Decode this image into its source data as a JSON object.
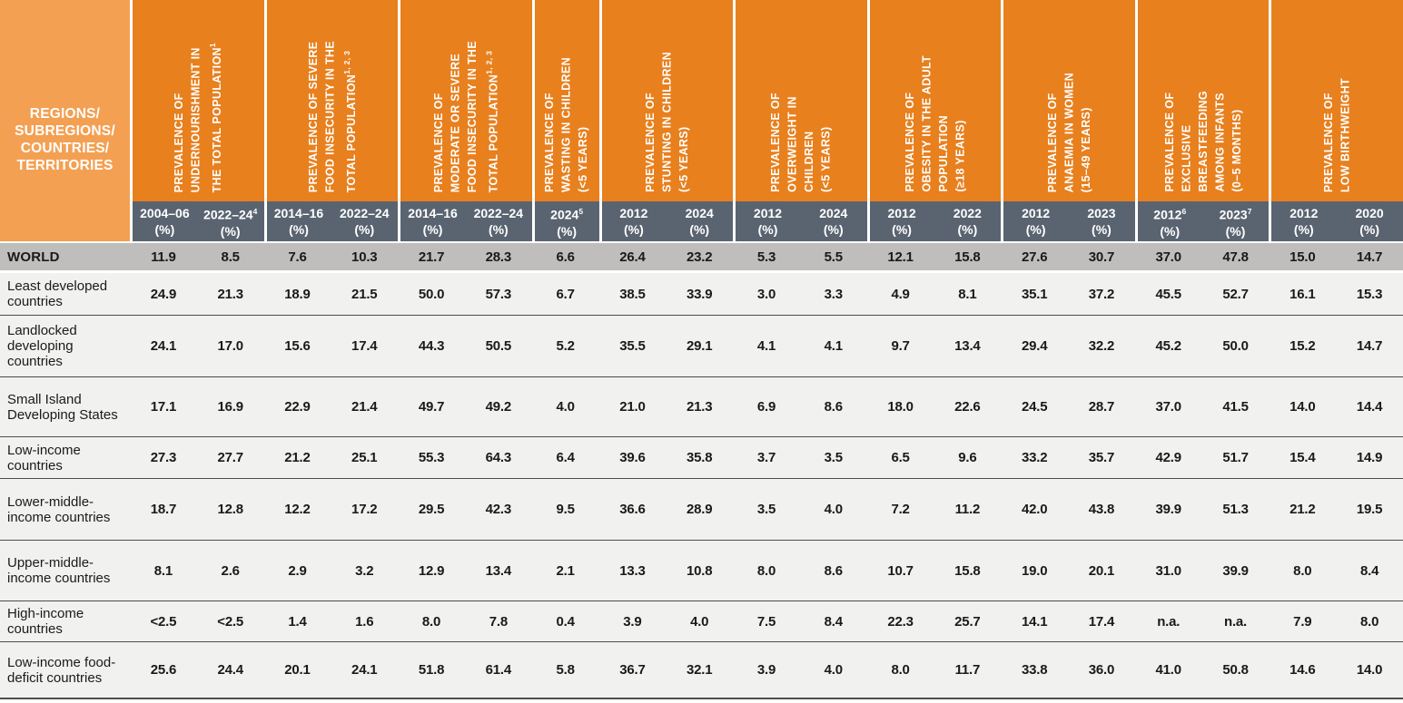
{
  "table": {
    "corner_lines": [
      "REGIONS/",
      "SUBREGIONS/",
      "COUNTRIES/",
      "TERRITORIES"
    ],
    "percent_label": "(%)",
    "colors": {
      "corner_orange": "#F3A053",
      "group_header_orange": "#E8801E",
      "year_bar_slate": "#5A6471",
      "world_row_gray": "#BFBEBD",
      "data_row_gray": "#F1F1EF",
      "row_rule_dark": "#4D4D4D",
      "header_text": "#FFFFFF",
      "body_text": "#1A1A1A"
    },
    "groups": [
      {
        "lines": [
          "PREVALENCE OF",
          "UNDERNOURISHMENT IN",
          "THE TOTAL POPULATION"
        ],
        "sup": "1",
        "cols": [
          {
            "year": "2004–06"
          },
          {
            "year": "2022–24",
            "sup": "4"
          }
        ]
      },
      {
        "lines": [
          "PREVALENCE OF SEVERE",
          "FOOD INSECURITY IN THE",
          "TOTAL POPULATION"
        ],
        "sup": "1, 2, 3",
        "cols": [
          {
            "year": "2014–16"
          },
          {
            "year": "2022–24"
          }
        ]
      },
      {
        "lines": [
          "PREVALENCE OF",
          "MODERATE OR SEVERE",
          "FOOD INSECURITY IN THE",
          "TOTAL POPULATION"
        ],
        "sup": "1, 2, 3",
        "cols": [
          {
            "year": "2014–16"
          },
          {
            "year": "2022–24"
          }
        ]
      },
      {
        "lines": [
          "PREVALENCE OF",
          "WASTING IN CHILDREN",
          "(<5 YEARS)"
        ],
        "cols": [
          {
            "year": "2024",
            "sup": "5"
          }
        ]
      },
      {
        "lines": [
          "PREVALENCE OF",
          "STUNTING IN CHILDREN",
          "(<5 YEARS)"
        ],
        "cols": [
          {
            "year": "2012"
          },
          {
            "year": "2024"
          }
        ]
      },
      {
        "lines": [
          "PREVALENCE OF",
          "OVERWEIGHT IN",
          "CHILDREN",
          "(<5 YEARS)"
        ],
        "cols": [
          {
            "year": "2012"
          },
          {
            "year": "2024"
          }
        ]
      },
      {
        "lines": [
          "PREVALENCE OF",
          "OBESITY IN THE ADULT",
          "POPULATION",
          "(≥18 YEARS)"
        ],
        "cols": [
          {
            "year": "2012"
          },
          {
            "year": "2022"
          }
        ]
      },
      {
        "lines": [
          "PREVALENCE OF",
          "ANAEMIA IN WOMEN",
          "(15–49 YEARS)"
        ],
        "cols": [
          {
            "year": "2012"
          },
          {
            "year": "2023"
          }
        ]
      },
      {
        "lines": [
          "PREVALENCE OF",
          "EXCLUSIVE",
          "BREASTFEEDING",
          "AMONG INFANTS",
          "(0–5 MONTHS)"
        ],
        "cols": [
          {
            "year": "2012",
            "sup": "6"
          },
          {
            "year": "2023",
            "sup": "7"
          }
        ]
      },
      {
        "lines": [
          "PREVALENCE OF",
          "LOW BIRTHWEIGHT"
        ],
        "cols": [
          {
            "year": "2012"
          },
          {
            "year": "2020"
          }
        ]
      }
    ],
    "rows": [
      {
        "label": "WORLD",
        "emphasis": true,
        "values": [
          "11.9",
          "8.5",
          "7.6",
          "10.3",
          "21.7",
          "28.3",
          "6.6",
          "26.4",
          "23.2",
          "5.3",
          "5.5",
          "12.1",
          "15.8",
          "27.6",
          "30.7",
          "37.0",
          "47.8",
          "15.0",
          "14.7"
        ]
      },
      {
        "label": "Least developed countries",
        "values": [
          "24.9",
          "21.3",
          "18.9",
          "21.5",
          "50.0",
          "57.3",
          "6.7",
          "38.5",
          "33.9",
          "3.0",
          "3.3",
          "4.9",
          "8.1",
          "35.1",
          "37.2",
          "45.5",
          "52.7",
          "16.1",
          "15.3"
        ]
      },
      {
        "label": "Landlocked developing countries",
        "values": [
          "24.1",
          "17.0",
          "15.6",
          "17.4",
          "44.3",
          "50.5",
          "5.2",
          "35.5",
          "29.1",
          "4.1",
          "4.1",
          "9.7",
          "13.4",
          "29.4",
          "32.2",
          "45.2",
          "50.0",
          "15.2",
          "14.7"
        ]
      },
      {
        "label": "Small Island Developing States",
        "values": [
          "17.1",
          "16.9",
          "22.9",
          "21.4",
          "49.7",
          "49.2",
          "4.0",
          "21.0",
          "21.3",
          "6.9",
          "8.6",
          "18.0",
          "22.6",
          "24.5",
          "28.7",
          "37.0",
          "41.5",
          "14.0",
          "14.4"
        ]
      },
      {
        "label": "Low-income countries",
        "values": [
          "27.3",
          "27.7",
          "21.2",
          "25.1",
          "55.3",
          "64.3",
          "6.4",
          "39.6",
          "35.8",
          "3.7",
          "3.5",
          "6.5",
          "9.6",
          "33.2",
          "35.7",
          "42.9",
          "51.7",
          "15.4",
          "14.9"
        ]
      },
      {
        "label": "Lower-middle-income countries",
        "values": [
          "18.7",
          "12.8",
          "12.2",
          "17.2",
          "29.5",
          "42.3",
          "9.5",
          "36.6",
          "28.9",
          "3.5",
          "4.0",
          "7.2",
          "11.2",
          "42.0",
          "43.8",
          "39.9",
          "51.3",
          "21.2",
          "19.5"
        ]
      },
      {
        "label": "Upper-middle-income countries",
        "values": [
          "8.1",
          "2.6",
          "2.9",
          "3.2",
          "12.9",
          "13.4",
          "2.1",
          "13.3",
          "10.8",
          "8.0",
          "8.6",
          "10.7",
          "15.8",
          "19.0",
          "20.1",
          "31.0",
          "39.9",
          "8.0",
          "8.4"
        ]
      },
      {
        "label": "High-income countries",
        "values": [
          "<2.5",
          "<2.5",
          "1.4",
          "1.6",
          "8.0",
          "7.8",
          "0.4",
          "3.9",
          "4.0",
          "7.5",
          "8.4",
          "22.3",
          "25.7",
          "14.1",
          "17.4",
          "n.a.",
          "n.a.",
          "7.9",
          "8.0"
        ]
      },
      {
        "label": "Low-income food-deficit countries",
        "values": [
          "25.6",
          "24.4",
          "20.1",
          "24.1",
          "51.8",
          "61.4",
          "5.8",
          "36.7",
          "32.1",
          "3.9",
          "4.0",
          "8.0",
          "11.7",
          "33.8",
          "36.0",
          "41.0",
          "50.8",
          "14.6",
          "14.0"
        ]
      }
    ]
  }
}
